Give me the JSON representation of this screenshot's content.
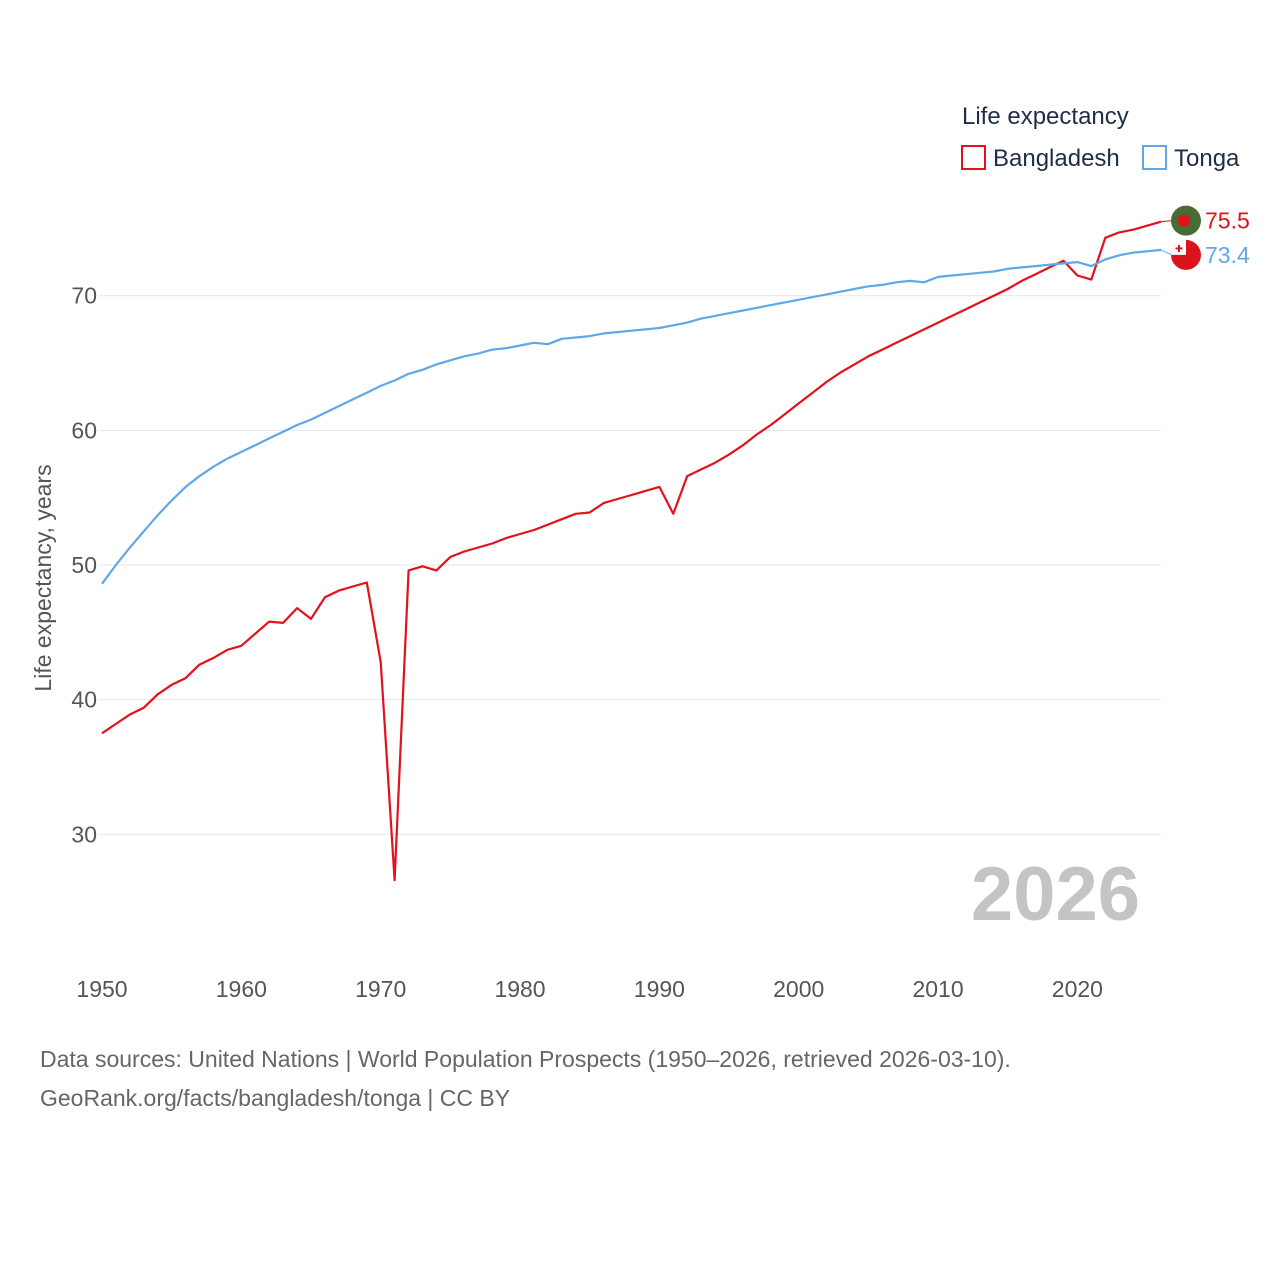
{
  "chart_data": {
    "type": "line",
    "year_label": "2026",
    "ylabel": "Life expectancy, years",
    "xlim": [
      1950,
      2026
    ],
    "ylim": [
      22,
      78
    ],
    "x_ticks": [
      1950,
      1960,
      1970,
      1980,
      1990,
      2000,
      2010,
      2020
    ],
    "x_tick_labels": [
      "1950",
      "1960",
      "1970",
      "1980",
      "1990",
      "2000",
      "2010",
      "2020"
    ],
    "y_ticks": [
      30,
      40,
      50,
      60,
      70
    ],
    "y_tick_labels": [
      "30",
      "40",
      "50",
      "60",
      "70"
    ],
    "legend": {
      "title": "Life expectancy",
      "position": "top-right"
    },
    "x": [
      1950,
      1951,
      1952,
      1953,
      1954,
      1955,
      1956,
      1957,
      1958,
      1959,
      1960,
      1961,
      1962,
      1963,
      1964,
      1965,
      1966,
      1967,
      1968,
      1969,
      1970,
      1971,
      1972,
      1973,
      1974,
      1975,
      1976,
      1977,
      1978,
      1979,
      1980,
      1981,
      1982,
      1983,
      1984,
      1985,
      1986,
      1987,
      1988,
      1989,
      1990,
      1991,
      1992,
      1993,
      1994,
      1995,
      1996,
      1997,
      1998,
      1999,
      2000,
      2001,
      2002,
      2003,
      2004,
      2005,
      2006,
      2007,
      2008,
      2009,
      2010,
      2011,
      2012,
      2013,
      2014,
      2015,
      2016,
      2017,
      2018,
      2019,
      2020,
      2021,
      2022,
      2023,
      2024,
      2025,
      2026
    ],
    "series": [
      {
        "name": "Bangladesh",
        "color": "#e3111b",
        "end_label": "75.5",
        "flag": "bangladesh-flag",
        "values": [
          37.5,
          38.2,
          38.9,
          39.4,
          40.4,
          41.1,
          41.6,
          42.6,
          43.1,
          43.7,
          44.0,
          44.9,
          45.8,
          45.7,
          46.8,
          46.0,
          47.6,
          48.1,
          48.4,
          48.7,
          42.8,
          26.6,
          49.6,
          49.9,
          49.6,
          50.6,
          51.0,
          51.3,
          51.6,
          52.0,
          52.3,
          52.6,
          53.0,
          53.4,
          53.8,
          53.9,
          54.6,
          54.9,
          55.2,
          55.5,
          55.8,
          53.8,
          56.6,
          57.1,
          57.6,
          58.2,
          58.9,
          59.7,
          60.4,
          61.2,
          62.0,
          62.8,
          63.6,
          64.3,
          64.9,
          65.5,
          66.0,
          66.5,
          67.0,
          67.5,
          68.0,
          68.5,
          69.0,
          69.5,
          70.0,
          70.5,
          71.1,
          71.6,
          72.1,
          72.6,
          71.5,
          71.2,
          74.3,
          74.7,
          74.9,
          75.2,
          75.5
        ]
      },
      {
        "name": "Tonga",
        "color": "#5fa8e8",
        "end_label": "73.4",
        "flag": "tonga-flag",
        "values": [
          48.6,
          50.0,
          51.3,
          52.5,
          53.7,
          54.8,
          55.8,
          56.6,
          57.3,
          57.9,
          58.4,
          58.9,
          59.4,
          59.9,
          60.4,
          60.8,
          61.3,
          61.8,
          62.3,
          62.8,
          63.3,
          63.7,
          64.2,
          64.5,
          64.9,
          65.2,
          65.5,
          65.7,
          66.0,
          66.1,
          66.3,
          66.5,
          66.4,
          66.8,
          66.9,
          67.0,
          67.2,
          67.3,
          67.4,
          67.5,
          67.6,
          67.8,
          68.0,
          68.3,
          68.5,
          68.7,
          68.9,
          69.1,
          69.3,
          69.5,
          69.7,
          69.9,
          70.1,
          70.3,
          70.5,
          70.7,
          70.8,
          71.0,
          71.1,
          71.0,
          71.4,
          71.5,
          71.6,
          71.7,
          71.8,
          72.0,
          72.1,
          72.2,
          72.3,
          72.4,
          72.5,
          72.2,
          72.7,
          73.0,
          73.2,
          73.3,
          73.4
        ]
      }
    ]
  },
  "footer": {
    "line1": "Data sources: United Nations | World Population Prospects (1950–2026, retrieved 2026-03-10).",
    "line2": "GeoRank.org/facts/bangladesh/tonga | CC BY"
  }
}
